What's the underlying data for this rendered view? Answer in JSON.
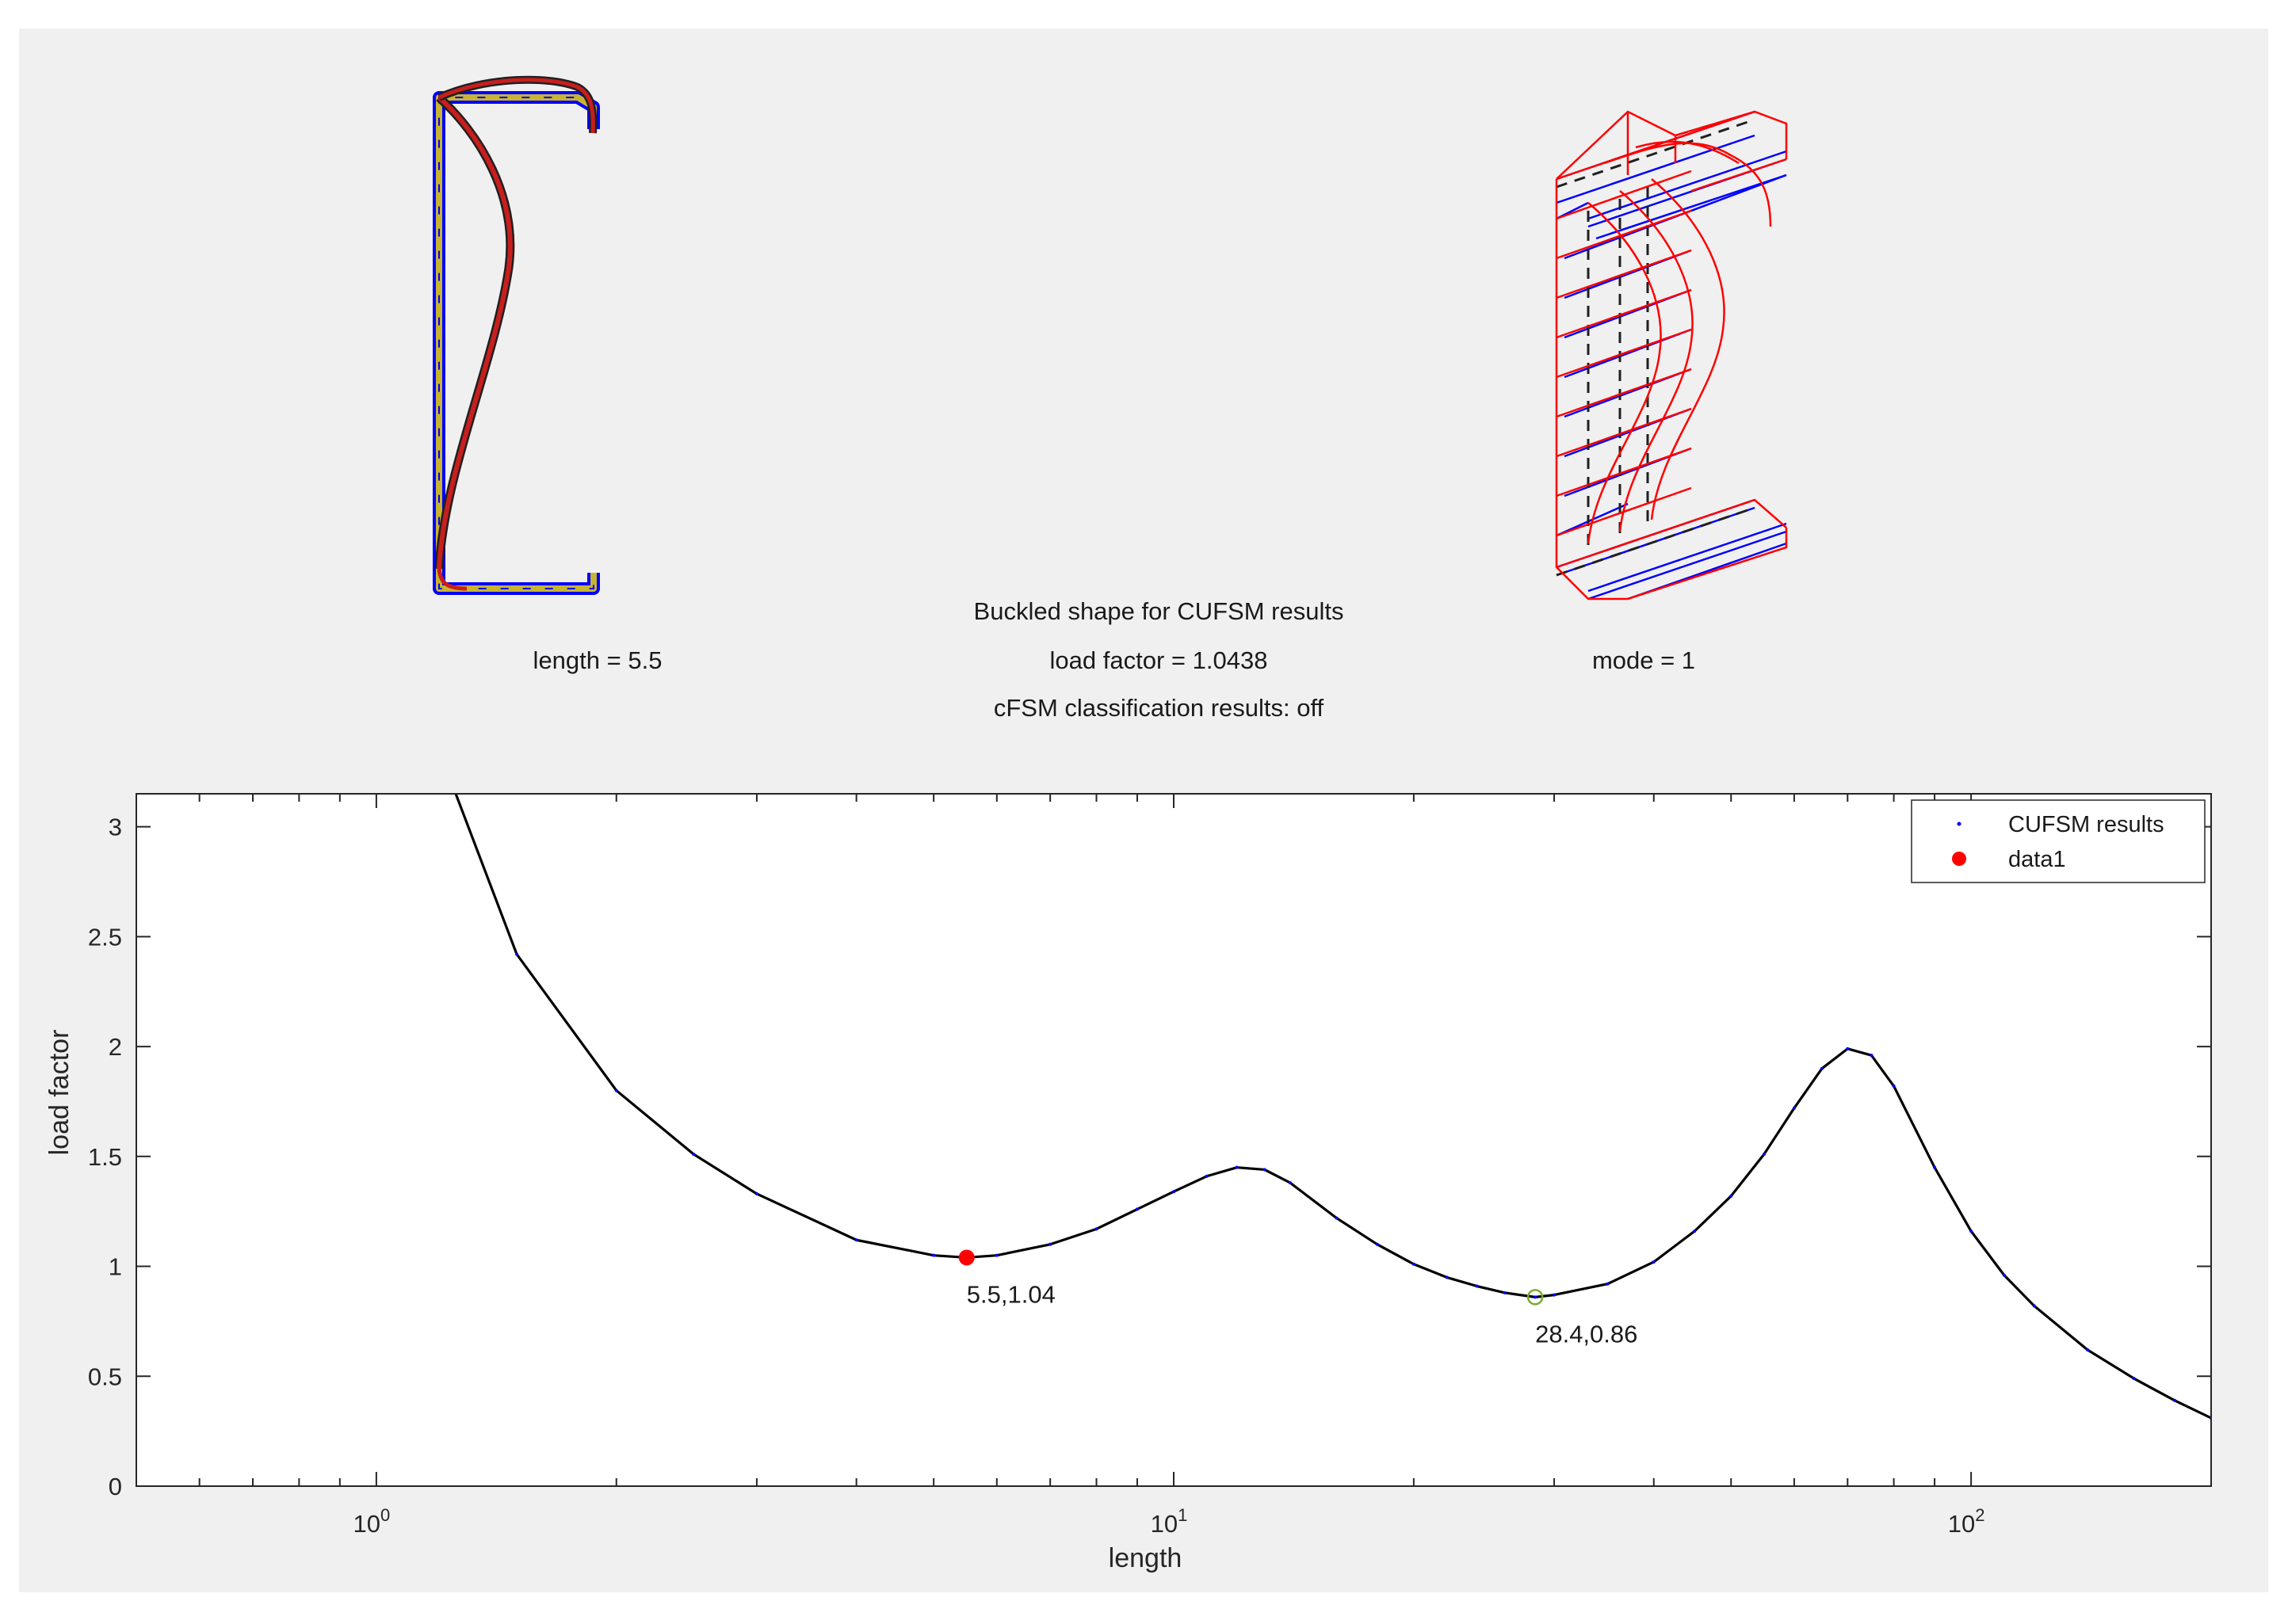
{
  "header": {
    "title": "Buckled shape for  CUFSM results",
    "length_text": "length =  5.5",
    "load_factor_text": "load factor =  1.0438",
    "mode_text": "mode =  1",
    "classification_text": "cFSM classification results: off"
  },
  "colors": {
    "panel_bg": "#f0f0f0",
    "curve": "#000000",
    "points": "#0000ff",
    "selected": "#ff0000",
    "minimum": "#77ac30",
    "section_fill": "#c8b432",
    "section_outline": "#0000ff",
    "buckled": "#ff0000",
    "mesh": "#0000ff"
  },
  "chart_data": {
    "type": "line",
    "xscale": "log",
    "xlabel": "length",
    "ylabel": "load factor",
    "xlim": [
      0.5,
      200
    ],
    "ylim": [
      0,
      3.15
    ],
    "x_ticks": [
      {
        "value": 1,
        "base": "10",
        "exp": "0"
      },
      {
        "value": 10,
        "base": "10",
        "exp": "1"
      },
      {
        "value": 100,
        "base": "10",
        "exp": "2"
      }
    ],
    "y_ticks": [
      {
        "value": 0,
        "label": "0"
      },
      {
        "value": 0.5,
        "label": "0.5"
      },
      {
        "value": 1,
        "label": "1"
      },
      {
        "value": 1.5,
        "label": "1.5"
      },
      {
        "value": 2,
        "label": "2"
      },
      {
        "value": 2.5,
        "label": "2.5"
      },
      {
        "value": 3,
        "label": "3"
      }
    ],
    "grid": false,
    "legend_position": "top-right",
    "series": [
      {
        "name": "CUFSM results",
        "x": [
          1.0,
          1.5,
          2.0,
          2.5,
          3.0,
          4.0,
          5.0,
          5.5,
          6.0,
          7.0,
          8.0,
          9.0,
          10.0,
          11.0,
          12.0,
          13.0,
          14.0,
          16.0,
          18.0,
          20.0,
          22.0,
          24.0,
          26.0,
          28.4,
          30.0,
          35.0,
          40.0,
          45.0,
          50.0,
          55.0,
          60.0,
          65.0,
          70.0,
          75.0,
          80.0,
          90.0,
          100.0,
          110.0,
          120.0,
          140.0,
          160.0,
          180.0,
          200.0
        ],
        "y": [
          4.1,
          2.42,
          1.8,
          1.51,
          1.33,
          1.12,
          1.05,
          1.04,
          1.05,
          1.1,
          1.17,
          1.26,
          1.34,
          1.41,
          1.45,
          1.44,
          1.38,
          1.22,
          1.1,
          1.01,
          0.95,
          0.91,
          0.88,
          0.86,
          0.87,
          0.92,
          1.02,
          1.16,
          1.32,
          1.51,
          1.72,
          1.9,
          1.99,
          1.96,
          1.82,
          1.45,
          1.16,
          0.96,
          0.82,
          0.62,
          0.49,
          0.39,
          0.31
        ]
      },
      {
        "name": "data1",
        "x": [
          5.5
        ],
        "y": [
          1.04
        ]
      }
    ],
    "minimum_marker": {
      "x": 28.4,
      "y": 0.86
    },
    "annotations": [
      {
        "x": 5.5,
        "y": 1.04,
        "text": "5.5,1.04"
      },
      {
        "x": 28.4,
        "y": 0.86,
        "text": "28.4,0.86"
      }
    ]
  }
}
